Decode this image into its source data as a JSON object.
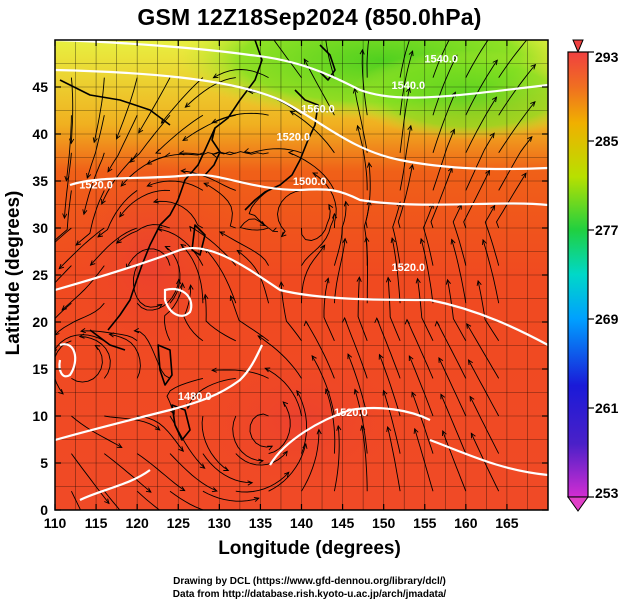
{
  "title": "GSM 12Z18Sep2024 (850.0hPa)",
  "x_axis": {
    "label": "Longitude (degrees)",
    "range": [
      110,
      170
    ],
    "ticks": [
      110,
      115,
      120,
      125,
      130,
      135,
      140,
      145,
      150,
      155,
      160,
      165
    ]
  },
  "y_axis": {
    "label": "Latitude  (degrees)",
    "range": [
      0,
      50
    ],
    "ticks": [
      0,
      5,
      10,
      15,
      20,
      25,
      30,
      35,
      40,
      45
    ]
  },
  "colorbar": {
    "ticks": [
      253,
      261,
      269,
      277,
      285,
      293
    ],
    "range": [
      253,
      293
    ]
  },
  "contour_labels": [
    {
      "text": "1500.0",
      "lon": 141,
      "lat": 34.6
    },
    {
      "text": "1520.0",
      "lon": 139,
      "lat": 39.3
    },
    {
      "text": "1520.0",
      "lon": 153,
      "lat": 25.4
    },
    {
      "text": "1520.0",
      "lon": 115,
      "lat": 34.2
    },
    {
      "text": "1480.0",
      "lon": 127,
      "lat": 11.7
    },
    {
      "text": "1520.0",
      "lon": 146,
      "lat": 10.0
    },
    {
      "text": "1540.0",
      "lon": 153,
      "lat": 44.8
    },
    {
      "text": "1540.0",
      "lon": 157,
      "lat": 47.6
    },
    {
      "text": "1560.0",
      "lon": 142,
      "lat": 42.3
    }
  ],
  "credits": {
    "line1": "Drawing by DCL (https://www.gfd-dennou.org/library/dcl/)",
    "line2": "Data from http://database.rish.kyoto-u.ac.jp/arch/jmadata/"
  }
}
